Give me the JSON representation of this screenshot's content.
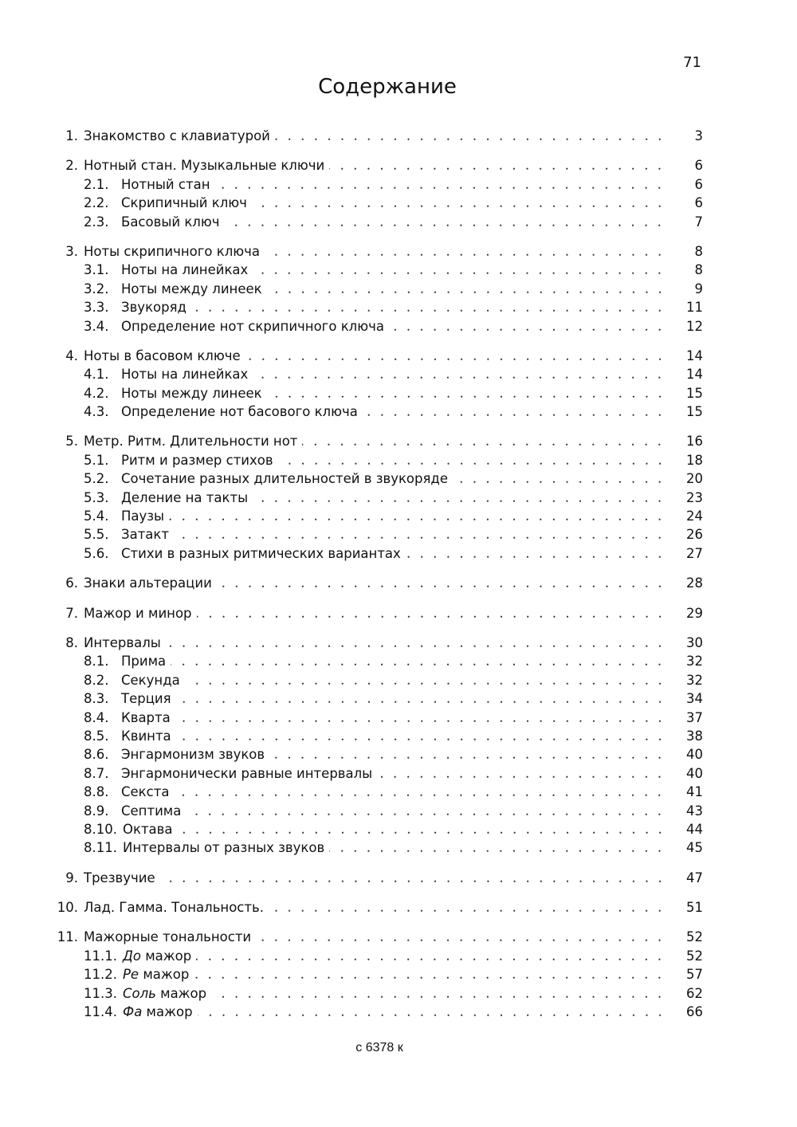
{
  "page_number": "71",
  "title": "Содержание",
  "footer": "с 6378 к",
  "sections": [
    {
      "num": "1.",
      "title": "Знакомство с клавиатурой",
      "page": "3",
      "items": []
    },
    {
      "num": "2.",
      "title": "Нотный стан. Музыкальные ключи",
      "page": "6",
      "items": [
        {
          "num": "2.1.",
          "title": "Нотный стан",
          "page": "6"
        },
        {
          "num": "2.2.",
          "title": "Скрипичный ключ",
          "page": "6"
        },
        {
          "num": "2.3.",
          "title": "Басовый ключ",
          "page": "7"
        }
      ]
    },
    {
      "num": "3.",
      "title": "Ноты скрипичного ключа",
      "page": "8",
      "items": [
        {
          "num": "3.1.",
          "title": "Ноты на линейках",
          "page": "8"
        },
        {
          "num": "3.2.",
          "title": "Ноты между линеек",
          "page": "9"
        },
        {
          "num": "3.3.",
          "title": "Звукоряд",
          "page": "11"
        },
        {
          "num": "3.4.",
          "title": "Определение нот скрипичного ключа",
          "page": "12"
        }
      ]
    },
    {
      "num": "4.",
      "title": "Ноты в басовом ключе",
      "page": "14",
      "items": [
        {
          "num": "4.1.",
          "title": "Ноты на линейках",
          "page": "14"
        },
        {
          "num": "4.2.",
          "title": "Ноты между линеек",
          "page": "15"
        },
        {
          "num": "4.3.",
          "title": "Определение нот басового ключа",
          "page": "15"
        }
      ]
    },
    {
      "num": "5.",
      "title": "Метр. Ритм. Длительности нот",
      "page": "16",
      "items": [
        {
          "num": "5.1.",
          "title": "Ритм и размер стихов",
          "page": "18"
        },
        {
          "num": "5.2.",
          "title": "Сочетание разных длительностей в звукоряде",
          "page": "20"
        },
        {
          "num": "5.3.",
          "title": "Деление на такты",
          "page": "23"
        },
        {
          "num": "5.4.",
          "title": "Паузы",
          "page": "24"
        },
        {
          "num": "5.5.",
          "title": "Затакт",
          "page": "26"
        },
        {
          "num": "5.6.",
          "title": "Стихи в разных ритмических вариантах",
          "page": "27"
        }
      ]
    },
    {
      "num": "6.",
      "title": "Знаки альтерации",
      "page": "28",
      "items": []
    },
    {
      "num": "7.",
      "title": "Мажор и минор",
      "page": "29",
      "items": []
    },
    {
      "num": "8.",
      "title": "Интервалы",
      "page": "30",
      "items": [
        {
          "num": "8.1.",
          "title": "Прима",
          "page": "32"
        },
        {
          "num": "8.2.",
          "title": "Секунда",
          "page": "32"
        },
        {
          "num": "8.3.",
          "title": "Терция",
          "page": "34"
        },
        {
          "num": "8.4.",
          "title": "Кварта",
          "page": "37"
        },
        {
          "num": "8.5.",
          "title": "Квинта",
          "page": "38"
        },
        {
          "num": "8.6.",
          "title": "Энгармонизм звуков",
          "page": "40"
        },
        {
          "num": "8.7.",
          "title": "Энгармонически равные интервалы",
          "page": "40"
        },
        {
          "num": "8.8.",
          "title": "Секста",
          "page": "41"
        },
        {
          "num": "8.9.",
          "title": "Септима",
          "page": "43"
        },
        {
          "num": "8.10.",
          "title": "Октава",
          "page": "44"
        },
        {
          "num": "8.11.",
          "title": "Интервалы от разных звуков",
          "page": "45"
        }
      ]
    },
    {
      "num": "9.",
      "title": "Трезвучие",
      "page": "47",
      "items": []
    },
    {
      "num": "10.",
      "title": "Лад. Гамма. Тональность.",
      "page": "51",
      "items": []
    },
    {
      "num": "11.",
      "title": "Мажорные тональности",
      "page": "52",
      "items": [
        {
          "num": "11.1.",
          "em": "До",
          "title": " мажор",
          "page": "52"
        },
        {
          "num": "11.2.",
          "em": "Ре",
          "title": " мажор",
          "page": "57"
        },
        {
          "num": "11.3.",
          "em": "Соль",
          "title": " мажор",
          "page": "62"
        },
        {
          "num": "11.4.",
          "em": "Фа",
          "title": " мажор",
          "page": "66"
        }
      ]
    }
  ]
}
